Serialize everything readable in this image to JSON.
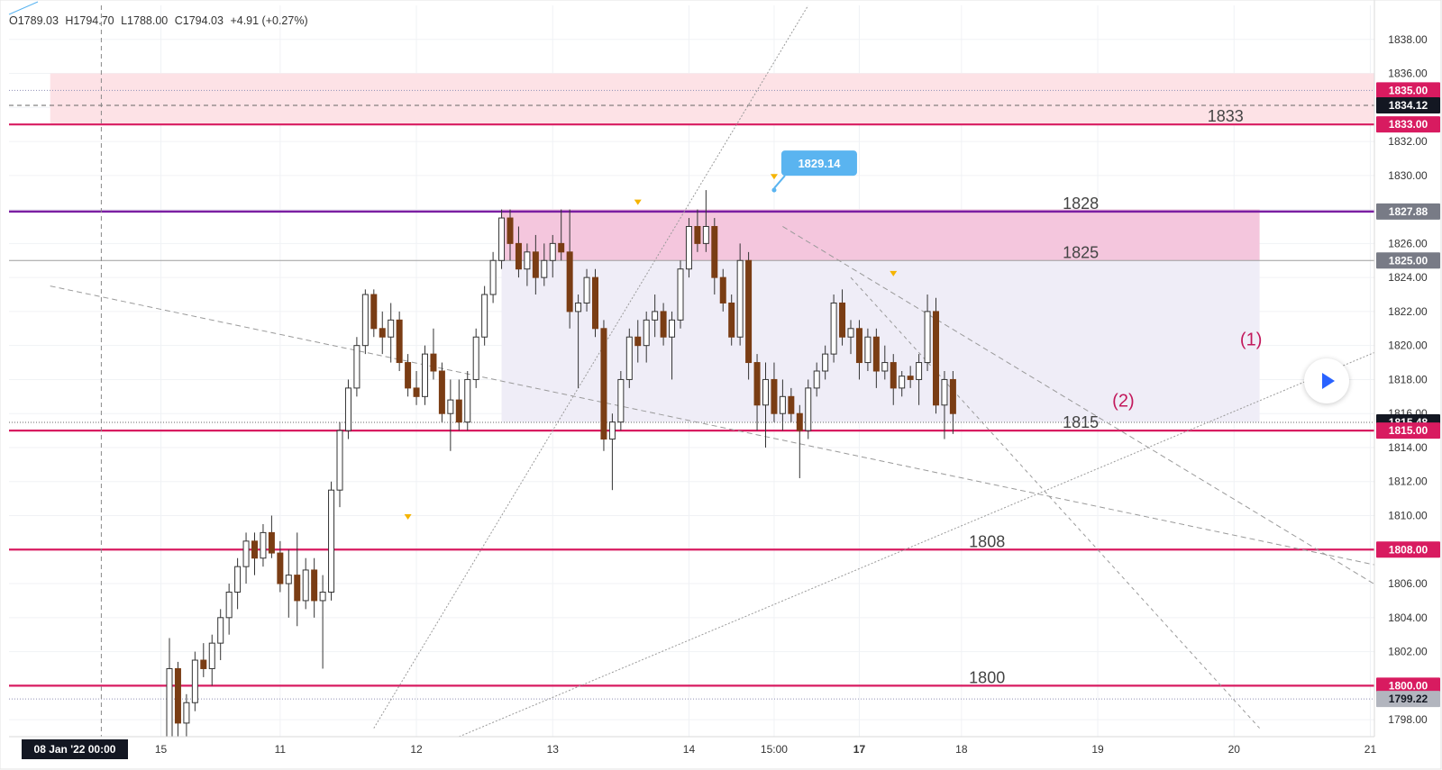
{
  "ohlc_header": {
    "open": "O1789.03",
    "high": "H1794.70",
    "low": "L1788.00",
    "close": "C1794.03",
    "change": "+4.91 (+0.27%)"
  },
  "colors": {
    "up_candle": "#ffffff",
    "down_candle": "#7a3d14",
    "wick": "#333333",
    "level_line": "#d81b60",
    "range_line": "#7b1fa2",
    "mid_line": "#9e9e9e",
    "upper_zone": "#fde2e6",
    "range_zone": "#f4c6dd",
    "box_zone": "#efedf7",
    "callout": "#5ab4f0",
    "wave_label": "#c2185b",
    "axis_text": "#333333",
    "dark_tag": "#131722",
    "gray_tag": "#787b86"
  },
  "chart_data": {
    "type": "candlestick",
    "ylim": [
      1797,
      1840
    ],
    "y_ticks": [
      "1798.00",
      "1800.00",
      "1802.00",
      "1804.00",
      "1806.00",
      "1808.00",
      "1810.00",
      "1812.00",
      "1814.00",
      "1816.00",
      "1818.00",
      "1820.00",
      "1822.00",
      "1824.00",
      "1826.00",
      "1828.00",
      "1830.00",
      "1832.00",
      "1834.00",
      "1836.00",
      "1838.00"
    ],
    "x_labels": [
      {
        "text": "15",
        "idx": -1
      },
      {
        "text": "11",
        "idx": 13
      },
      {
        "text": "12",
        "idx": 29
      },
      {
        "text": "13",
        "idx": 45
      },
      {
        "text": "14",
        "idx": 61
      },
      {
        "text": "15:00",
        "idx": 71
      },
      {
        "text": "17",
        "idx": 81
      },
      {
        "text": "18",
        "idx": 93
      },
      {
        "text": "19",
        "idx": 109
      },
      {
        "text": "20",
        "idx": 125
      },
      {
        "text": "21",
        "idx": 141
      }
    ],
    "x_date_tag": "08 Jan '22   00:00",
    "candles": [
      [
        1796.0,
        1802.8,
        1795.0,
        1801.0
      ],
      [
        1801.0,
        1801.4,
        1797.0,
        1797.8
      ],
      [
        1797.8,
        1799.5,
        1796.0,
        1799.0
      ],
      [
        1799.0,
        1802.0,
        1798.5,
        1801.5
      ],
      [
        1801.5,
        1802.5,
        1800.5,
        1801.0
      ],
      [
        1801.0,
        1803.0,
        1800.0,
        1802.5
      ],
      [
        1802.5,
        1804.5,
        1801.5,
        1804.0
      ],
      [
        1804.0,
        1806.0,
        1803.0,
        1805.5
      ],
      [
        1805.5,
        1807.5,
        1804.5,
        1807.0
      ],
      [
        1807.0,
        1809.0,
        1806.0,
        1808.5
      ],
      [
        1808.5,
        1809.0,
        1806.5,
        1807.5
      ],
      [
        1807.5,
        1809.5,
        1807.0,
        1809.0
      ],
      [
        1809.0,
        1810.0,
        1807.5,
        1807.8
      ],
      [
        1807.8,
        1808.5,
        1805.5,
        1806.0
      ],
      [
        1806.0,
        1808.0,
        1804.0,
        1806.5
      ],
      [
        1806.5,
        1809.0,
        1803.5,
        1805.0
      ],
      [
        1805.0,
        1807.5,
        1804.5,
        1806.8
      ],
      [
        1806.8,
        1807.5,
        1804.0,
        1805.0
      ],
      [
        1805.0,
        1806.5,
        1801.0,
        1805.5
      ],
      [
        1805.5,
        1812.0,
        1805.0,
        1811.5
      ],
      [
        1811.5,
        1815.5,
        1810.5,
        1815.0
      ],
      [
        1815.0,
        1818.0,
        1814.5,
        1817.5
      ],
      [
        1817.5,
        1820.5,
        1817.0,
        1820.0
      ],
      [
        1820.0,
        1823.3,
        1819.5,
        1823.0
      ],
      [
        1823.0,
        1823.3,
        1820.5,
        1821.0
      ],
      [
        1821.0,
        1822.0,
        1819.5,
        1820.5
      ],
      [
        1820.5,
        1822.5,
        1819.0,
        1821.5
      ],
      [
        1821.5,
        1822.0,
        1818.5,
        1819.0
      ],
      [
        1819.0,
        1819.5,
        1817.0,
        1817.5
      ],
      [
        1817.5,
        1818.5,
        1816.5,
        1817.0
      ],
      [
        1817.0,
        1820.0,
        1816.5,
        1819.5
      ],
      [
        1819.5,
        1821.0,
        1818.0,
        1818.5
      ],
      [
        1818.5,
        1819.0,
        1815.5,
        1816.0
      ],
      [
        1816.0,
        1818.0,
        1813.8,
        1816.8
      ],
      [
        1816.8,
        1818.0,
        1815.0,
        1815.5
      ],
      [
        1815.5,
        1818.5,
        1815.0,
        1818.0
      ],
      [
        1818.0,
        1821.0,
        1817.5,
        1820.5
      ],
      [
        1820.5,
        1823.5,
        1820.0,
        1823.0
      ],
      [
        1823.0,
        1825.5,
        1822.5,
        1825.0
      ],
      [
        1825.0,
        1828.0,
        1824.5,
        1827.5
      ],
      [
        1827.5,
        1828.0,
        1825.0,
        1826.0
      ],
      [
        1826.0,
        1827.0,
        1824.0,
        1824.5
      ],
      [
        1824.5,
        1826.0,
        1823.5,
        1825.5
      ],
      [
        1825.5,
        1826.5,
        1823.0,
        1824.0
      ],
      [
        1824.0,
        1826.0,
        1823.5,
        1825.0
      ],
      [
        1825.0,
        1826.5,
        1824.0,
        1826.0
      ],
      [
        1826.0,
        1828.0,
        1825.0,
        1825.5
      ],
      [
        1825.5,
        1828.0,
        1821.0,
        1822.0
      ],
      [
        1822.0,
        1823.0,
        1817.5,
        1822.5
      ],
      [
        1822.5,
        1824.5,
        1822.0,
        1824.0
      ],
      [
        1824.0,
        1824.5,
        1820.5,
        1821.0
      ],
      [
        1821.0,
        1821.5,
        1813.8,
        1814.5
      ],
      [
        1814.5,
        1816.0,
        1811.5,
        1815.5
      ],
      [
        1815.5,
        1818.5,
        1815.0,
        1818.0
      ],
      [
        1818.0,
        1821.0,
        1817.5,
        1820.5
      ],
      [
        1820.5,
        1821.5,
        1819.0,
        1820.0
      ],
      [
        1820.0,
        1822.0,
        1819.0,
        1821.5
      ],
      [
        1821.5,
        1823.0,
        1820.5,
        1822.0
      ],
      [
        1822.0,
        1822.5,
        1820.0,
        1820.5
      ],
      [
        1820.5,
        1822.0,
        1818.0,
        1821.5
      ],
      [
        1821.5,
        1825.0,
        1821.0,
        1824.5
      ],
      [
        1824.5,
        1827.5,
        1824.0,
        1827.0
      ],
      [
        1827.0,
        1828.0,
        1825.5,
        1826.0
      ],
      [
        1826.0,
        1829.14,
        1825.5,
        1827.0
      ],
      [
        1827.0,
        1827.5,
        1823.0,
        1824.0
      ],
      [
        1824.0,
        1824.5,
        1822.0,
        1822.5
      ],
      [
        1822.5,
        1823.0,
        1820.0,
        1820.5
      ],
      [
        1820.5,
        1826.0,
        1820.0,
        1825.0
      ],
      [
        1825.0,
        1825.5,
        1818.0,
        1819.0
      ],
      [
        1819.0,
        1819.5,
        1815.0,
        1816.5
      ],
      [
        1816.5,
        1819.0,
        1814.0,
        1818.0
      ],
      [
        1818.0,
        1819.0,
        1815.5,
        1816.0
      ],
      [
        1816.0,
        1818.0,
        1815.0,
        1817.0
      ],
      [
        1817.0,
        1817.5,
        1815.5,
        1816.0
      ],
      [
        1816.0,
        1816.5,
        1812.2,
        1815.0
      ],
      [
        1815.0,
        1818.0,
        1814.5,
        1817.5
      ],
      [
        1817.5,
        1819.0,
        1817.0,
        1818.5
      ],
      [
        1818.5,
        1820.0,
        1818.0,
        1819.5
      ],
      [
        1819.5,
        1823.0,
        1819.0,
        1822.5
      ],
      [
        1822.5,
        1823.3,
        1820.0,
        1820.5
      ],
      [
        1820.5,
        1821.5,
        1819.5,
        1821.0
      ],
      [
        1821.0,
        1821.5,
        1818.0,
        1819.0
      ],
      [
        1819.0,
        1821.0,
        1818.5,
        1820.5
      ],
      [
        1820.5,
        1821.0,
        1817.5,
        1818.5
      ],
      [
        1818.5,
        1820.0,
        1818.0,
        1819.0
      ],
      [
        1819.0,
        1819.5,
        1816.5,
        1817.5
      ],
      [
        1817.5,
        1818.5,
        1817.0,
        1818.2
      ],
      [
        1818.2,
        1818.8,
        1817.5,
        1818.0
      ],
      [
        1818.0,
        1819.5,
        1816.5,
        1819.0
      ],
      [
        1819.0,
        1823.0,
        1818.5,
        1822.0
      ],
      [
        1822.0,
        1822.8,
        1816.0,
        1816.5
      ],
      [
        1816.5,
        1818.5,
        1814.5,
        1818.0
      ],
      [
        1818.0,
        1818.5,
        1814.8,
        1816.0
      ]
    ],
    "horizontal_levels": [
      {
        "price": 1835.0,
        "tag": "1835.00",
        "kind": "dotted"
      },
      {
        "price": 1834.12,
        "tag": "1834.12",
        "kind": "dashed"
      },
      {
        "price": 1833.0,
        "tag": "1833.00",
        "label": "1833",
        "label_idx": 124,
        "kind": "level"
      },
      {
        "price": 1827.88,
        "tag": "1827.88",
        "label": "1828",
        "label_idx": 107,
        "kind": "range"
      },
      {
        "price": 1825.0,
        "tag": "1825.00",
        "label": "1825",
        "label_idx": 107,
        "kind": "mid"
      },
      {
        "price": 1815.0,
        "tag": "1815.00",
        "label": "1815",
        "label_idx": 107,
        "kind": "level"
      },
      {
        "price": 1808.0,
        "tag": "1808.00",
        "label": "1808",
        "label_idx": 96,
        "kind": "level"
      },
      {
        "price": 1800.0,
        "tag": "1800.00",
        "label": "1800",
        "label_idx": 96,
        "kind": "level"
      },
      {
        "price": 1799.22,
        "tag": "1799.22",
        "kind": "dotted"
      }
    ],
    "current_price_tag": "1815.48",
    "current_price": 1815.48,
    "zones": [
      {
        "name": "upper-zone",
        "y0": 1833.0,
        "y1": 1836.0,
        "x0": -14,
        "x1": 152
      },
      {
        "name": "range-zone",
        "y0": 1825.0,
        "y1": 1828.0,
        "x0": 39,
        "x1": 128
      },
      {
        "name": "box-zone",
        "y0": 1815.5,
        "y1": 1825.0,
        "x0": 39,
        "x1": 128
      }
    ],
    "trendlines": [
      {
        "name": "dashed-trendline-1",
        "p1": [
          -14,
          1823.5
        ],
        "p2": [
          152,
          1806.0
        ],
        "dash": "6,4"
      },
      {
        "name": "dashed-trendline-2",
        "p1": [
          72,
          1827.0
        ],
        "p2": [
          148,
          1804.0
        ],
        "dash": "6,4"
      },
      {
        "name": "dashed-trendline-3",
        "p1": [
          80,
          1824.0
        ],
        "p2": [
          128,
          1797.5
        ],
        "dash": "4,4"
      },
      {
        "name": "dotted-trendline-rising",
        "p1": [
          34,
          1797.0
        ],
        "p2": [
          152,
          1821.8
        ],
        "dash": "2,2"
      },
      {
        "name": "dotted-trendline-steep",
        "p1": [
          24,
          1797.5
        ],
        "p2": [
          75,
          1840.0
        ],
        "dash": "2,2"
      }
    ],
    "high_callout": {
      "text": "1829.14",
      "idx": 71,
      "price": 1829.14
    },
    "wave_labels": [
      {
        "text": "(1)",
        "idx": 127,
        "price": 1820.0
      },
      {
        "text": "(2)",
        "idx": 112,
        "price": 1816.4
      }
    ],
    "markers": [
      {
        "idx": 28,
        "price": 1809.5
      },
      {
        "idx": 55,
        "price": 1828.0
      },
      {
        "idx": 71,
        "price": 1829.5
      },
      {
        "idx": 85,
        "price": 1823.8
      }
    ],
    "vertical_crosshair_idx": -8
  }
}
